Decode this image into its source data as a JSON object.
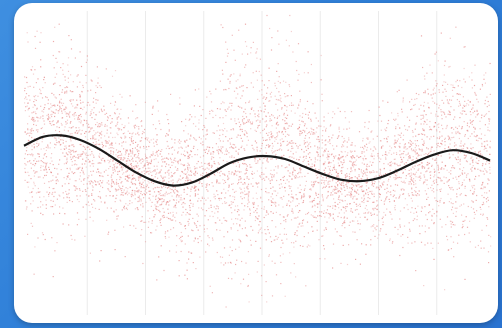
{
  "chart_data": {
    "type": "scatter",
    "title": "",
    "xlabel": "",
    "ylabel": "",
    "xlim": [
      0,
      1
    ],
    "ylim": [
      0,
      1
    ],
    "grid": "vertical-lines",
    "legend": "none",
    "scatter_color": "#e58a8a",
    "trend_color": "#1a1a1a",
    "trend": {
      "x": [
        0.0,
        0.04,
        0.08,
        0.12,
        0.16,
        0.2,
        0.24,
        0.28,
        0.32,
        0.36,
        0.4,
        0.44,
        0.48,
        0.52,
        0.56,
        0.6,
        0.64,
        0.68,
        0.72,
        0.76,
        0.8,
        0.84,
        0.88,
        0.92,
        0.96,
        1.0
      ],
      "y": [
        0.55,
        0.58,
        0.585,
        0.57,
        0.54,
        0.5,
        0.46,
        0.43,
        0.415,
        0.425,
        0.455,
        0.49,
        0.51,
        0.515,
        0.505,
        0.48,
        0.455,
        0.435,
        0.43,
        0.44,
        0.465,
        0.495,
        0.52,
        0.535,
        0.525,
        0.5
      ]
    },
    "point_count": 5200
  }
}
